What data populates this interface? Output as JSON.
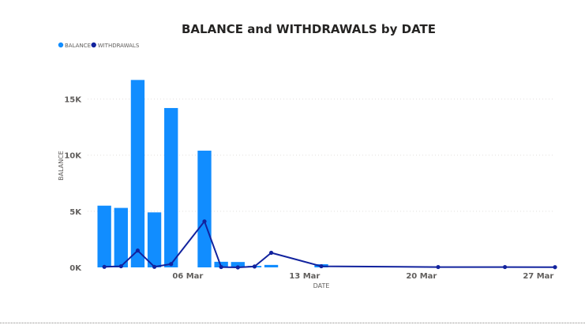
{
  "chart_data": {
    "type": "bar",
    "title": "BALANCE and WITHDRAWALS by DATE",
    "xlabel": "DATE",
    "ylabel": "BALANCE",
    "x_tick_labels": [
      {
        "label": "06 Mar",
        "date": "2024-03-06"
      },
      {
        "label": "13 Mar",
        "date": "2024-03-13"
      },
      {
        "label": "20 Mar",
        "date": "2024-03-20"
      },
      {
        "label": "27 Mar",
        "date": "2024-03-27"
      }
    ],
    "y_tick_labels": [
      {
        "label": "0K",
        "value": 0
      },
      {
        "label": "5K",
        "value": 5000
      },
      {
        "label": "10K",
        "value": 10000
      },
      {
        "label": "15K",
        "value": 15000
      }
    ],
    "xlim": [
      "2024-02-29",
      "2024-03-28"
    ],
    "ylim": [
      0,
      17500
    ],
    "grid": true,
    "legend_position": "top-left",
    "series": [
      {
        "name": "BALANCE",
        "type": "bar",
        "color": "#118DFF",
        "points": [
          {
            "x": "2024-03-01",
            "y": 5500
          },
          {
            "x": "2024-03-02",
            "y": 5300
          },
          {
            "x": "2024-03-03",
            "y": 16700
          },
          {
            "x": "2024-03-04",
            "y": 4900
          },
          {
            "x": "2024-03-05",
            "y": 14200
          },
          {
            "x": "2024-03-07",
            "y": 10400
          },
          {
            "x": "2024-03-08",
            "y": 500
          },
          {
            "x": "2024-03-09",
            "y": 480
          },
          {
            "x": "2024-03-10",
            "y": 130
          },
          {
            "x": "2024-03-11",
            "y": 220
          },
          {
            "x": "2024-03-14",
            "y": 280
          }
        ]
      },
      {
        "name": "WITHDRAWALS",
        "type": "line",
        "color": "#12239E",
        "points": [
          {
            "x": "2024-03-01",
            "y": 50
          },
          {
            "x": "2024-03-02",
            "y": 100
          },
          {
            "x": "2024-03-03",
            "y": 1500
          },
          {
            "x": "2024-03-04",
            "y": 50
          },
          {
            "x": "2024-03-05",
            "y": 300
          },
          {
            "x": "2024-03-07",
            "y": 4100
          },
          {
            "x": "2024-03-08",
            "y": 30
          },
          {
            "x": "2024-03-09",
            "y": 0
          },
          {
            "x": "2024-03-10",
            "y": 80
          },
          {
            "x": "2024-03-11",
            "y": 1300
          },
          {
            "x": "2024-03-14",
            "y": 100
          },
          {
            "x": "2024-03-21",
            "y": 30
          },
          {
            "x": "2024-03-25",
            "y": 30
          },
          {
            "x": "2024-03-28",
            "y": 20
          }
        ]
      }
    ]
  }
}
